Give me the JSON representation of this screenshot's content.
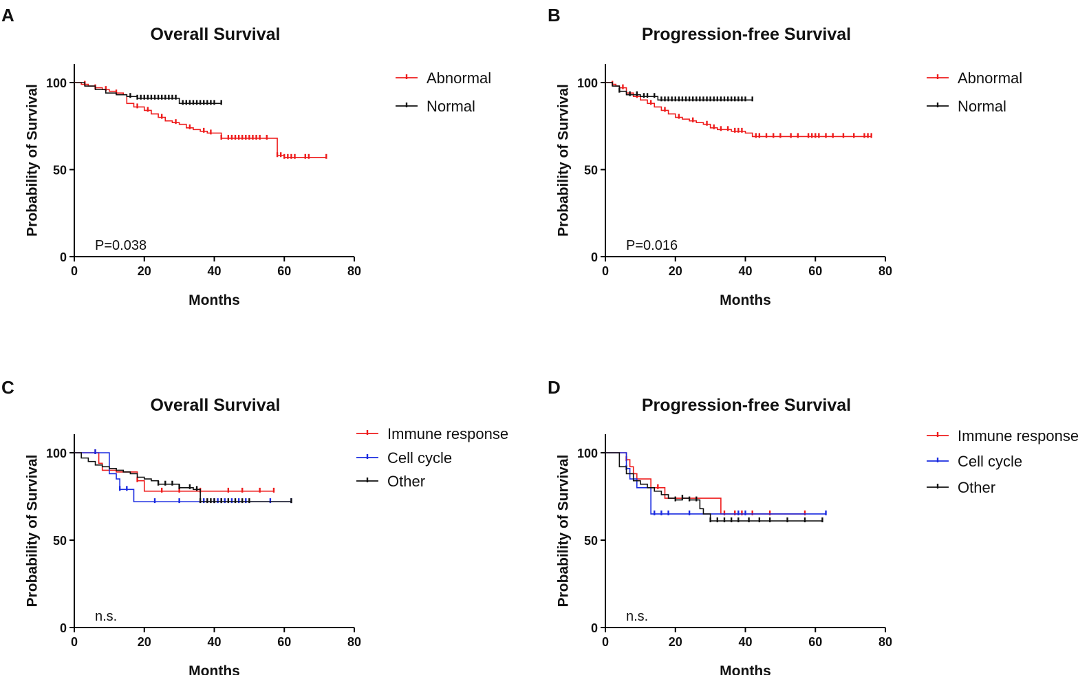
{
  "figure": {
    "name": "Kaplan-Meier survival curves"
  },
  "colors": {
    "abnormal": "#ee1c1c",
    "normal": "#111111",
    "immune": "#ee1c1c",
    "cellcycle": "#1a2be0",
    "other": "#111111"
  },
  "chart_data": [
    {
      "panel": "A",
      "type": "line",
      "step": true,
      "title": "Overall Survival",
      "xlabel": "Months",
      "ylabel": "Probability of Survival",
      "xlim": [
        0,
        80
      ],
      "ylim": [
        0,
        100
      ],
      "xticks": [
        0,
        20,
        40,
        60,
        80
      ],
      "yticks": [
        0,
        50,
        100
      ],
      "annotation": "P=0.038",
      "legend": {
        "placement": "right",
        "entries": [
          "Abnormal",
          "Normal"
        ]
      },
      "series": [
        {
          "name": "Abnormal",
          "color": "#ee1c1c",
          "x": [
            0,
            2,
            4,
            6,
            8,
            10,
            12,
            14,
            15,
            17,
            20,
            22,
            24,
            26,
            28,
            30,
            32,
            34,
            36,
            38,
            42,
            48,
            57,
            58,
            60,
            72
          ],
          "y": [
            100,
            99,
            98,
            97,
            96,
            95,
            94,
            93,
            88,
            86,
            84,
            82,
            80,
            78,
            77,
            76,
            74,
            73,
            72,
            71,
            68,
            68,
            68,
            58,
            57,
            57
          ],
          "censor": [
            3,
            6,
            9,
            12,
            18,
            21,
            25,
            29,
            33,
            37,
            39,
            42,
            44,
            45,
            46,
            47,
            48,
            49,
            50,
            51,
            52,
            53,
            55,
            58,
            59,
            60,
            61,
            62,
            63,
            66,
            67,
            72
          ]
        },
        {
          "name": "Normal",
          "color": "#111111",
          "x": [
            0,
            3,
            6,
            9,
            12,
            15,
            18,
            30,
            42
          ],
          "y": [
            100,
            98,
            96,
            94,
            93,
            92,
            91,
            88,
            88
          ],
          "censor": [
            16,
            18,
            19,
            20,
            21,
            22,
            23,
            24,
            25,
            26,
            27,
            28,
            29,
            31,
            32,
            33,
            34,
            35,
            36,
            37,
            38,
            39,
            40,
            42
          ]
        }
      ]
    },
    {
      "panel": "B",
      "type": "line",
      "step": true,
      "title": "Progression-free Survival",
      "xlabel": "Months",
      "ylabel": "Probability of Survival",
      "xlim": [
        0,
        80
      ],
      "ylim": [
        0,
        100
      ],
      "xticks": [
        0,
        20,
        40,
        60,
        80
      ],
      "yticks": [
        0,
        50,
        100
      ],
      "annotation": "P=0.016",
      "legend": {
        "placement": "right",
        "entries": [
          "Abnormal",
          "Normal"
        ]
      },
      "series": [
        {
          "name": "Abnormal",
          "color": "#ee1c1c",
          "x": [
            0,
            2,
            3,
            4,
            6,
            8,
            10,
            12,
            14,
            16,
            18,
            20,
            22,
            24,
            26,
            28,
            30,
            32,
            36,
            40,
            42,
            76
          ],
          "y": [
            100,
            99,
            98,
            97,
            94,
            92,
            90,
            88,
            86,
            84,
            82,
            80,
            79,
            78,
            77,
            76,
            74,
            73,
            72,
            71,
            69,
            69
          ],
          "censor": [
            2,
            5,
            9,
            13,
            17,
            21,
            25,
            29,
            31,
            33,
            35,
            37,
            38,
            39,
            43,
            44,
            46,
            48,
            50,
            53,
            55,
            58,
            59,
            60,
            61,
            63,
            65,
            68,
            71,
            74,
            75,
            76
          ]
        },
        {
          "name": "Normal",
          "color": "#111111",
          "x": [
            0,
            2,
            4,
            6,
            10,
            15,
            42
          ],
          "y": [
            100,
            98,
            95,
            93,
            92,
            90,
            90
          ],
          "censor": [
            4,
            7,
            9,
            11,
            12,
            14,
            16,
            17,
            18,
            19,
            20,
            21,
            22,
            23,
            24,
            25,
            26,
            27,
            28,
            29,
            30,
            31,
            32,
            33,
            34,
            35,
            36,
            37,
            38,
            39,
            40,
            42
          ]
        }
      ]
    },
    {
      "panel": "C",
      "type": "line",
      "step": true,
      "title": "Overall Survival",
      "xlabel": "Months",
      "ylabel": "Probability of Survival",
      "xlim": [
        0,
        80
      ],
      "ylim": [
        0,
        100
      ],
      "xticks": [
        0,
        20,
        40,
        60,
        80
      ],
      "yticks": [
        0,
        50,
        100
      ],
      "annotation": "n.s.",
      "legend": {
        "placement": "right",
        "entries": [
          "Immune response",
          "Cell cycle",
          "Other"
        ]
      },
      "series": [
        {
          "name": "Immune response",
          "color": "#ee1c1c",
          "x": [
            0,
            6,
            7,
            8,
            12,
            18,
            20,
            36,
            57
          ],
          "y": [
            100,
            100,
            94,
            90,
            89,
            84,
            78,
            78,
            78
          ],
          "censor": [
            6,
            18,
            25,
            30,
            36,
            44,
            48,
            53,
            57
          ]
        },
        {
          "name": "Cell cycle",
          "color": "#1a2be0",
          "x": [
            0,
            6,
            10,
            12,
            13,
            17,
            62
          ],
          "y": [
            100,
            100,
            88,
            85,
            79,
            72,
            72
          ],
          "censor": [
            6,
            13,
            15,
            23,
            30,
            37,
            40,
            41,
            42,
            43,
            45,
            47,
            49,
            56,
            62
          ]
        },
        {
          "name": "Other",
          "color": "#111111",
          "x": [
            0,
            2,
            4,
            6,
            8,
            10,
            12,
            14,
            16,
            18,
            20,
            22,
            24,
            26,
            30,
            34,
            36,
            62
          ],
          "y": [
            100,
            97,
            95,
            93,
            92,
            91,
            90,
            89,
            88,
            86,
            85,
            84,
            82,
            82,
            80,
            79,
            72,
            72
          ],
          "censor": [
            24,
            26,
            28,
            30,
            33,
            35,
            36,
            38,
            39,
            40,
            42,
            44,
            46,
            48,
            50,
            62
          ]
        }
      ]
    },
    {
      "panel": "D",
      "type": "line",
      "step": true,
      "title": "Progression-free Survival",
      "xlabel": "Months",
      "ylabel": "Probability of Survival",
      "xlim": [
        0,
        80
      ],
      "ylim": [
        0,
        100
      ],
      "xticks": [
        0,
        20,
        40,
        60,
        80
      ],
      "yticks": [
        0,
        50,
        100
      ],
      "annotation": "n.s.",
      "legend": {
        "placement": "right",
        "entries": [
          "Immune response",
          "Cell cycle",
          "Other"
        ]
      },
      "series": [
        {
          "name": "Immune response",
          "color": "#ee1c1c",
          "x": [
            0,
            5,
            6,
            7,
            8,
            9,
            12,
            13,
            17,
            33,
            57
          ],
          "y": [
            100,
            100,
            96,
            92,
            88,
            85,
            85,
            80,
            74,
            65,
            65
          ],
          "censor": [
            6,
            15,
            34,
            37,
            39,
            42,
            47,
            57
          ]
        },
        {
          "name": "Cell cycle",
          "color": "#1a2be0",
          "x": [
            0,
            5,
            6,
            7,
            9,
            13,
            15,
            63
          ],
          "y": [
            100,
            100,
            91,
            85,
            80,
            65,
            65,
            65
          ],
          "censor": [
            6,
            14,
            16,
            18,
            24,
            38,
            40,
            63
          ]
        },
        {
          "name": "Other",
          "color": "#111111",
          "x": [
            0,
            4,
            6,
            8,
            10,
            12,
            14,
            16,
            18,
            20,
            22,
            24,
            27,
            28,
            30,
            62
          ],
          "y": [
            100,
            92,
            88,
            84,
            82,
            80,
            78,
            76,
            74,
            73,
            74,
            73,
            68,
            65,
            61,
            61
          ],
          "censor": [
            20,
            22,
            24,
            26,
            30,
            32,
            34,
            36,
            38,
            41,
            44,
            47,
            52,
            57,
            62
          ]
        }
      ]
    }
  ]
}
